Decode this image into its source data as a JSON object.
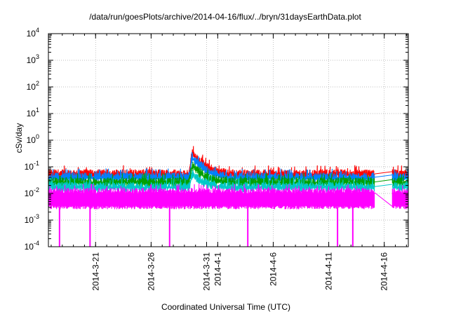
{
  "chart_data": {
    "type": "line",
    "title": "/data/run/goesPlots/archive/2014-04-16/flux/../bryn/31daysEarthData.plot",
    "xlabel": "Coordinated Universal Time (UTC)",
    "ylabel": "cSv/day",
    "yscale": "log",
    "ylim": [
      0.0001,
      10000
    ],
    "xlim": [
      "2014-03-16 18:00",
      "2014-04-18 04:00"
    ],
    "grid": true,
    "y_ticks": [
      {
        "base": "10",
        "exp": "-4"
      },
      {
        "base": "10",
        "exp": "-3"
      },
      {
        "base": "10",
        "exp": "-2"
      },
      {
        "base": "10",
        "exp": "-1"
      },
      {
        "base": "10",
        "exp": "0"
      },
      {
        "base": "10",
        "exp": "1"
      },
      {
        "base": "10",
        "exp": "2"
      },
      {
        "base": "10",
        "exp": "3"
      },
      {
        "base": "10",
        "exp": "4"
      }
    ],
    "x_ticks": [
      {
        "label": "2014-3-21",
        "date": "2014-03-21"
      },
      {
        "label": "2014-3-26",
        "date": "2014-03-26"
      },
      {
        "label": "2014-3-31",
        "date": "2014-03-31"
      },
      {
        "label": "2014-4-1",
        "date": "2014-04-01"
      },
      {
        "label": "2014-4-6",
        "date": "2014-04-06"
      },
      {
        "label": "2014-4-11",
        "date": "2014-04-11"
      },
      {
        "label": "2014-4-16",
        "date": "2014-04-16"
      }
    ],
    "data_gap": [
      "2014-04-15 03:00",
      "2014-04-16 17:00"
    ],
    "series": [
      {
        "color": "#ff0000",
        "typical": 0.06,
        "peak": {
          "date": "2014-03-29 18:00",
          "value": 0.35
        }
      },
      {
        "color": "#0080ff",
        "typical": 0.045,
        "peak": {
          "date": "2014-03-29 18:00",
          "value": 0.25
        }
      },
      {
        "color": "#00a000",
        "typical": 0.03,
        "peak": {
          "date": "2014-03-29 18:00",
          "value": 0.12
        }
      },
      {
        "color": "#00c8c8",
        "typical": 0.02,
        "peak": {
          "date": "2014-03-29 18:00",
          "value": 0.06
        }
      },
      {
        "color": "#ff00ff",
        "typical": 0.012,
        "low": 0.003,
        "dropouts": [
          "2014-03-17 18:00",
          "2014-03-20 12:00",
          "2014-03-27 16:00",
          "2014-04-03 17:00",
          "2014-04-11 19:00",
          "2014-04-13 04:00"
        ]
      }
    ]
  }
}
